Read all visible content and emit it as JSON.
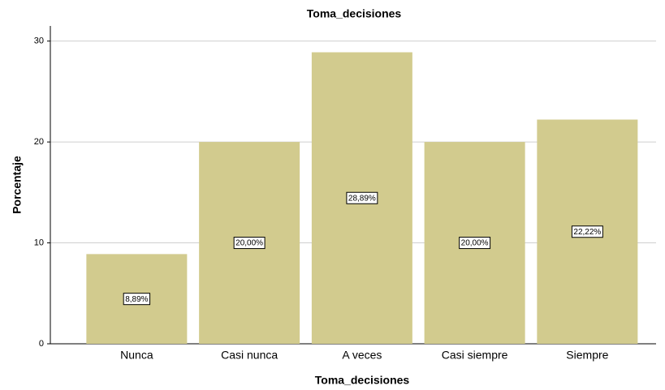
{
  "chart_data": {
    "type": "bar",
    "title": "Toma_decisiones",
    "x_label": "Toma_decisiones",
    "y_label": "Porcentaje",
    "categories": [
      "Nunca",
      "Casi nunca",
      "A veces",
      "Casi siempre",
      "Siempre"
    ],
    "values": [
      8.89,
      20,
      28.89,
      20,
      22.22
    ],
    "value_labels": [
      "8,89%",
      "20,00%",
      "28,89%",
      "20,00%",
      "22,22%"
    ],
    "color": "#d2cb8e",
    "ylim": [
      0,
      31.5
    ],
    "yticks": [
      0,
      10,
      20,
      30
    ],
    "grid": true
  }
}
